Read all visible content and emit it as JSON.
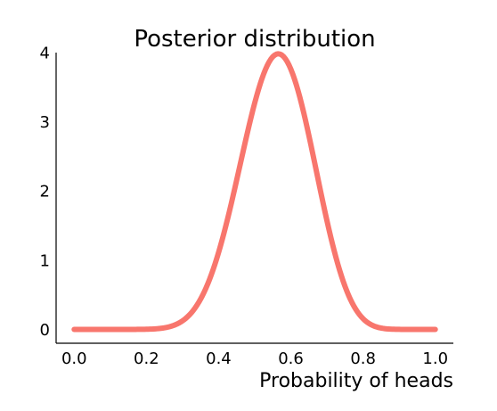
{
  "chart_data": {
    "type": "line",
    "title": "Posterior distribution",
    "xlabel": "Probability of heads",
    "ylabel": "",
    "xlim": [
      -0.05,
      1.05
    ],
    "ylim": [
      -0.2,
      4.0
    ],
    "x_ticks": [
      "0.0",
      "0.2",
      "0.4",
      "0.6",
      "0.8",
      "1.0"
    ],
    "y_ticks": [
      "0",
      "1",
      "2",
      "3",
      "4"
    ],
    "grid": false,
    "series": [
      {
        "color": "#F8766D",
        "distribution": "beta",
        "alpha": 14,
        "beta": 11,
        "x": [
          0.0,
          0.05,
          0.1,
          0.15,
          0.2,
          0.25,
          0.3,
          0.35,
          0.4,
          0.45,
          0.5,
          0.55,
          0.57,
          0.6,
          0.65,
          0.7,
          0.75,
          0.8,
          0.85,
          0.9,
          0.95,
          1.0
        ],
        "y": [
          0.0,
          0.0,
          0.0,
          0.0,
          0.01,
          0.07,
          0.26,
          0.71,
          1.48,
          2.46,
          3.36,
          3.8,
          3.83,
          3.73,
          3.07,
          2.07,
          1.09,
          0.42,
          0.1,
          0.01,
          0.0,
          0.0
        ]
      }
    ]
  }
}
